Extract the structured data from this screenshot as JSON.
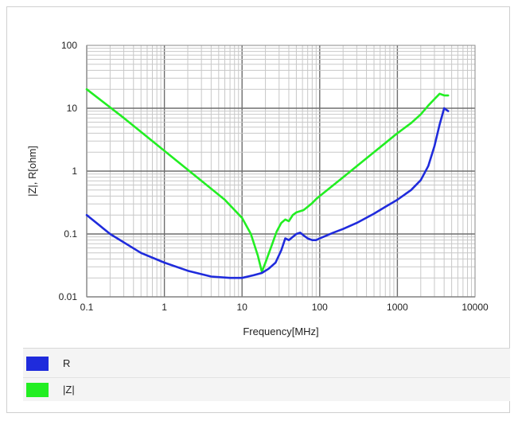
{
  "chart_data": {
    "type": "line",
    "xlabel": "Frequency[MHz]",
    "ylabel": "|Z|, R[ohm]",
    "xscale": "log",
    "yscale": "log",
    "xlim": [
      0.1,
      10000
    ],
    "ylim": [
      0.01,
      100
    ],
    "grid": true,
    "legend_position": "bottom",
    "x_tick_labels": [
      "0.1",
      "1",
      "10",
      "100",
      "1000",
      "10000"
    ],
    "y_tick_labels": [
      "0.01",
      "0.1",
      "1",
      "10",
      "100"
    ],
    "series": [
      {
        "name": "R",
        "color": "#1f2bdc",
        "x": [
          0.1,
          0.2,
          0.5,
          1,
          2,
          4,
          7,
          10,
          14,
          18,
          22,
          27,
          32,
          36,
          40,
          45,
          50,
          56,
          62,
          70,
          80,
          90,
          100,
          150,
          200,
          300,
          500,
          700,
          1000,
          1500,
          2000,
          2500,
          3000,
          3500,
          4000,
          4500
        ],
        "values": [
          0.2,
          0.1,
          0.05,
          0.035,
          0.026,
          0.021,
          0.02,
          0.02,
          0.022,
          0.024,
          0.028,
          0.035,
          0.055,
          0.085,
          0.08,
          0.09,
          0.1,
          0.105,
          0.095,
          0.085,
          0.08,
          0.08,
          0.085,
          0.105,
          0.12,
          0.15,
          0.21,
          0.27,
          0.35,
          0.5,
          0.72,
          1.2,
          2.5,
          5.5,
          10,
          9
        ]
      },
      {
        "name": "|Z|",
        "color": "#22ee22",
        "x": [
          0.1,
          0.3,
          1,
          3,
          6,
          10,
          13,
          16,
          18,
          20,
          24,
          28,
          32,
          36,
          40,
          45,
          50,
          56,
          62,
          70,
          80,
          90,
          100,
          200,
          300,
          500,
          700,
          1000,
          1500,
          2000,
          2500,
          3000,
          3500,
          4000,
          4500
        ],
        "values": [
          20,
          7,
          2.1,
          0.7,
          0.35,
          0.18,
          0.1,
          0.045,
          0.025,
          0.035,
          0.065,
          0.11,
          0.15,
          0.17,
          0.16,
          0.2,
          0.22,
          0.23,
          0.24,
          0.27,
          0.31,
          0.36,
          0.4,
          0.8,
          1.2,
          2,
          2.8,
          4,
          5.8,
          8,
          11,
          14,
          17,
          16,
          16
        ]
      }
    ]
  }
}
